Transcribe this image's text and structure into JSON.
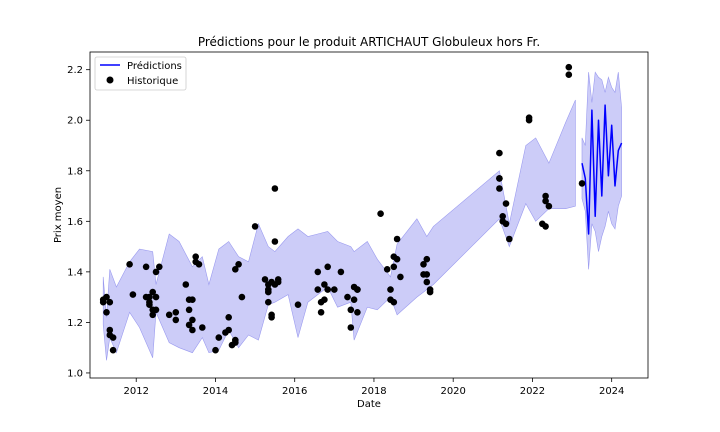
{
  "chart_data": {
    "type": "line",
    "title": "Prédictions pour le produit ARTICHAUT Globuleux hors Fr.",
    "xlabel": "Date",
    "ylabel": "Prix moyen",
    "xlim": [
      "2010-11-01",
      "2024-12-01"
    ],
    "ylim": [
      0.98,
      2.27
    ],
    "xticks": [
      "2012",
      "2014",
      "2016",
      "2018",
      "2020",
      "2022",
      "2024"
    ],
    "yticks": [
      "1.0",
      "1.2",
      "1.4",
      "1.6",
      "1.8",
      "2.0",
      "2.2"
    ],
    "legend": {
      "placement": "top-left",
      "entries": [
        "Prédictions",
        "Historique"
      ]
    },
    "colors": {
      "prediction": "#0000ff",
      "band": "#c3c3f7",
      "band_edge": "#9a9aef",
      "history": "#000000"
    },
    "band_note": "uncertainty interval shown as shaded area",
    "band": {
      "x": [
        "2011-03",
        "2011-04",
        "2011-05",
        "2011-07",
        "2011-11",
        "2012-02",
        "2012-06",
        "2012-07",
        "2012-11",
        "2013-02",
        "2013-06",
        "2013-09",
        "2013-11",
        "2014-02",
        "2014-05",
        "2014-08",
        "2014-11",
        "2015-02",
        "2015-05",
        "2015-07",
        "2015-11",
        "2016-02",
        "2016-05",
        "2016-08",
        "2016-11",
        "2017-02",
        "2017-06",
        "2017-07",
        "2017-11",
        "2018-02",
        "2018-06",
        "2018-08",
        "2019-02",
        "2019-05",
        "2019-07",
        "2021-03",
        "2021-06",
        "2021-11",
        "2022-02",
        "2022-06",
        "2022-11",
        "2023-02"
      ],
      "upper": [
        1.38,
        1.22,
        1.41,
        1.34,
        1.44,
        1.49,
        1.48,
        1.35,
        1.55,
        1.52,
        1.42,
        1.46,
        1.35,
        1.49,
        1.52,
        1.46,
        1.44,
        1.59,
        1.5,
        1.48,
        1.54,
        1.57,
        1.54,
        1.55,
        1.56,
        1.52,
        1.5,
        1.48,
        1.52,
        1.45,
        1.38,
        1.51,
        1.61,
        1.54,
        1.58,
        1.8,
        1.59,
        1.9,
        1.93,
        1.83,
        1.99,
        2.08
      ],
      "lower": [
        1.19,
        1.05,
        1.14,
        1.08,
        1.24,
        1.18,
        1.06,
        1.24,
        1.12,
        1.1,
        1.08,
        1.14,
        1.08,
        1.09,
        1.17,
        1.1,
        1.15,
        1.13,
        1.27,
        1.28,
        1.31,
        1.14,
        1.28,
        1.31,
        1.34,
        1.26,
        1.28,
        1.13,
        1.26,
        1.25,
        1.3,
        1.23,
        1.3,
        1.33,
        1.35,
        1.61,
        1.5,
        1.67,
        1.6,
        1.65,
        1.65,
        1.66
      ]
    },
    "prediction_band": {
      "x": [
        "2023-04",
        "2023-05",
        "2023-06",
        "2023-07",
        "2023-08",
        "2023-09",
        "2023-10",
        "2023-11",
        "2023-12",
        "2024-01",
        "2024-02",
        "2024-03",
        "2024-04"
      ],
      "upper": [
        1.93,
        1.9,
        2.19,
        2.07,
        2.19,
        2.17,
        2.16,
        2.11,
        2.17,
        2.13,
        2.11,
        2.19,
        2.05
      ],
      "lower": [
        1.69,
        1.64,
        1.41,
        1.59,
        1.56,
        1.48,
        1.54,
        1.58,
        1.64,
        1.59,
        1.57,
        1.66,
        1.7
      ]
    },
    "series": [
      {
        "name": "Prédictions",
        "kind": "line",
        "x": [
          "2023-04",
          "2023-05",
          "2023-06",
          "2023-07",
          "2023-08",
          "2023-09",
          "2023-10",
          "2023-11",
          "2023-12",
          "2024-01",
          "2024-02",
          "2024-03",
          "2024-04"
        ],
        "y": [
          1.83,
          1.77,
          1.55,
          2.04,
          1.62,
          2.0,
          1.7,
          2.06,
          1.78,
          1.98,
          1.74,
          1.88,
          1.91
        ]
      },
      {
        "name": "Historique",
        "kind": "scatter",
        "x": [
          "2011-03",
          "2011-03",
          "2011-04",
          "2011-04",
          "2011-05",
          "2011-05",
          "2011-06",
          "2011-05",
          "2011-06",
          "2011-11",
          "2011-12",
          "2012-04",
          "2012-04",
          "2012-05",
          "2012-05",
          "2012-05",
          "2012-06",
          "2012-06",
          "2012-06",
          "2012-07",
          "2012-07",
          "2012-07",
          "2012-08",
          "2012-11",
          "2013-01",
          "2013-01",
          "2013-04",
          "2013-05",
          "2013-05",
          "2013-05",
          "2013-06",
          "2013-06",
          "2013-06",
          "2013-07",
          "2013-07",
          "2013-08",
          "2013-09",
          "2014-01",
          "2014-02",
          "2014-04",
          "2014-05",
          "2014-05",
          "2014-06",
          "2014-07",
          "2014-07",
          "2014-07",
          "2014-08",
          "2014-09",
          "2015-01",
          "2015-04",
          "2015-05",
          "2015-05",
          "2015-05",
          "2015-05",
          "2015-06",
          "2015-06",
          "2015-06",
          "2015-07",
          "2015-07",
          "2015-07",
          "2015-08",
          "2015-08",
          "2016-02",
          "2016-08",
          "2016-08",
          "2016-09",
          "2016-09",
          "2016-10",
          "2016-10",
          "2016-11",
          "2016-11",
          "2017-01",
          "2017-03",
          "2017-05",
          "2017-06",
          "2017-06",
          "2017-07",
          "2017-07",
          "2017-08",
          "2017-08",
          "2017-08",
          "2018-03",
          "2018-05",
          "2018-06",
          "2018-06",
          "2018-07",
          "2018-07",
          "2018-07",
          "2018-08",
          "2018-08",
          "2018-09",
          "2019-04",
          "2019-04",
          "2019-05",
          "2019-05",
          "2019-05",
          "2019-06",
          "2019-06",
          "2021-03",
          "2021-03",
          "2021-03",
          "2021-03",
          "2021-04",
          "2021-04",
          "2021-05",
          "2021-05",
          "2021-06",
          "2021-12",
          "2021-12",
          "2022-04",
          "2022-05",
          "2022-05",
          "2022-05",
          "2022-06",
          "2022-12",
          "2022-12",
          "2023-04"
        ],
        "y": [
          1.29,
          1.28,
          1.24,
          1.3,
          1.15,
          1.28,
          1.09,
          1.17,
          1.14,
          1.43,
          1.31,
          1.3,
          1.42,
          1.27,
          1.28,
          1.3,
          1.25,
          1.32,
          1.23,
          1.4,
          1.25,
          1.3,
          1.42,
          1.23,
          1.24,
          1.21,
          1.35,
          1.29,
          1.25,
          1.19,
          1.17,
          1.21,
          1.29,
          1.46,
          1.44,
          1.43,
          1.18,
          1.09,
          1.14,
          1.16,
          1.22,
          1.17,
          1.11,
          1.12,
          1.13,
          1.41,
          1.43,
          1.3,
          1.58,
          1.37,
          1.35,
          1.33,
          1.32,
          1.28,
          1.36,
          1.22,
          1.23,
          1.35,
          1.73,
          1.52,
          1.37,
          1.36,
          1.27,
          1.4,
          1.33,
          1.24,
          1.28,
          1.29,
          1.35,
          1.33,
          1.42,
          1.33,
          1.4,
          1.3,
          1.25,
          1.18,
          1.34,
          1.29,
          1.24,
          1.33,
          1.33,
          1.63,
          1.41,
          1.33,
          1.29,
          1.28,
          1.46,
          1.42,
          1.53,
          1.45,
          1.38,
          1.39,
          1.43,
          1.45,
          1.36,
          1.39,
          1.32,
          1.33,
          1.87,
          1.77,
          1.77,
          1.73,
          1.6,
          1.62,
          1.67,
          1.59,
          1.53,
          2.01,
          2.0,
          1.59,
          1.7,
          1.58,
          1.68,
          1.66,
          2.18,
          2.21,
          1.75
        ]
      }
    ]
  }
}
